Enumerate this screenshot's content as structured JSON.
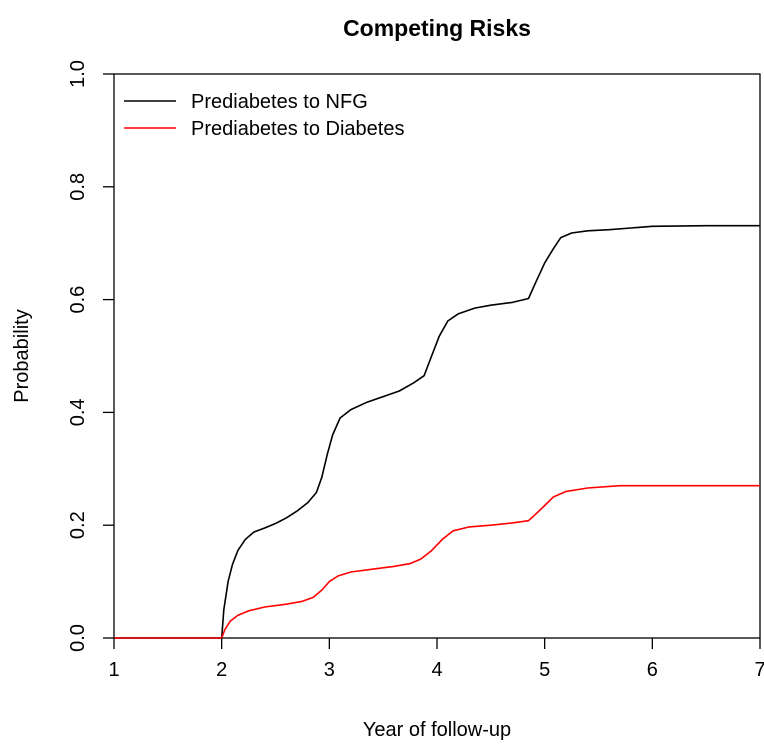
{
  "chart_data": {
    "type": "line",
    "title": "Competing Risks",
    "xlabel": "Year of follow-up",
    "ylabel": "Probability",
    "xlim": [
      1,
      7
    ],
    "ylim": [
      0,
      1
    ],
    "x_ticks": [
      "1",
      "2",
      "3",
      "4",
      "5",
      "6",
      "7"
    ],
    "y_ticks": [
      "0.0",
      "0.2",
      "0.4",
      "0.6",
      "0.8",
      "1.0"
    ],
    "grid": false,
    "legend_position": "top-left",
    "series": [
      {
        "name": "Prediabetes to NFG",
        "color": "#000000",
        "points": [
          [
            1.0,
            0.0
          ],
          [
            2.0,
            0.0
          ],
          [
            2.02,
            0.05
          ],
          [
            2.06,
            0.1
          ],
          [
            2.1,
            0.13
          ],
          [
            2.15,
            0.155
          ],
          [
            2.22,
            0.175
          ],
          [
            2.3,
            0.188
          ],
          [
            2.4,
            0.195
          ],
          [
            2.5,
            0.203
          ],
          [
            2.6,
            0.213
          ],
          [
            2.7,
            0.225
          ],
          [
            2.8,
            0.24
          ],
          [
            2.88,
            0.258
          ],
          [
            2.93,
            0.285
          ],
          [
            2.98,
            0.325
          ],
          [
            3.03,
            0.36
          ],
          [
            3.1,
            0.39
          ],
          [
            3.2,
            0.405
          ],
          [
            3.35,
            0.418
          ],
          [
            3.5,
            0.428
          ],
          [
            3.65,
            0.438
          ],
          [
            3.78,
            0.452
          ],
          [
            3.88,
            0.465
          ],
          [
            3.95,
            0.5
          ],
          [
            4.02,
            0.535
          ],
          [
            4.1,
            0.562
          ],
          [
            4.2,
            0.575
          ],
          [
            4.35,
            0.585
          ],
          [
            4.5,
            0.59
          ],
          [
            4.7,
            0.595
          ],
          [
            4.85,
            0.602
          ],
          [
            4.92,
            0.632
          ],
          [
            5.0,
            0.665
          ],
          [
            5.08,
            0.69
          ],
          [
            5.15,
            0.71
          ],
          [
            5.25,
            0.718
          ],
          [
            5.4,
            0.722
          ],
          [
            5.6,
            0.724
          ],
          [
            5.8,
            0.727
          ],
          [
            6.0,
            0.73
          ],
          [
            6.5,
            0.731
          ],
          [
            7.0,
            0.731
          ]
        ]
      },
      {
        "name": "Prediabetes to Diabetes",
        "color": "#ff0000",
        "points": [
          [
            1.0,
            0.0
          ],
          [
            2.0,
            0.0
          ],
          [
            2.03,
            0.015
          ],
          [
            2.08,
            0.03
          ],
          [
            2.15,
            0.04
          ],
          [
            2.25,
            0.048
          ],
          [
            2.4,
            0.055
          ],
          [
            2.6,
            0.06
          ],
          [
            2.75,
            0.065
          ],
          [
            2.85,
            0.072
          ],
          [
            2.93,
            0.085
          ],
          [
            3.0,
            0.1
          ],
          [
            3.08,
            0.11
          ],
          [
            3.2,
            0.117
          ],
          [
            3.4,
            0.122
          ],
          [
            3.6,
            0.127
          ],
          [
            3.75,
            0.132
          ],
          [
            3.85,
            0.14
          ],
          [
            3.95,
            0.155
          ],
          [
            4.05,
            0.175
          ],
          [
            4.15,
            0.19
          ],
          [
            4.3,
            0.197
          ],
          [
            4.5,
            0.2
          ],
          [
            4.7,
            0.204
          ],
          [
            4.85,
            0.208
          ],
          [
            4.93,
            0.222
          ],
          [
            5.0,
            0.235
          ],
          [
            5.08,
            0.25
          ],
          [
            5.2,
            0.26
          ],
          [
            5.4,
            0.266
          ],
          [
            5.7,
            0.27
          ],
          [
            6.0,
            0.27
          ],
          [
            7.0,
            0.27
          ]
        ]
      }
    ]
  }
}
